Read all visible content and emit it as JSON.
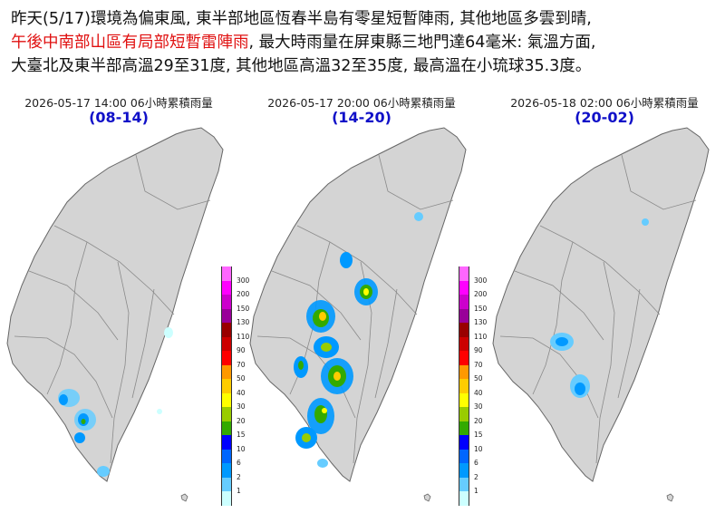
{
  "headline": {
    "line1": "昨天(5/17)環境為偏東風, 東半部地區恆春半島有零星短暫陣雨, 其他地區多雲到晴,",
    "line2_red": "午後中南部山區有局部短暫雷陣雨",
    "line2_rest": ", 最大時雨量在屏東縣三地門達64毫米: 氣溫方面,",
    "line3": "大臺北及東半部高溫29至31度, 其他地區高溫32至35度, 最高溫在小琉球35.3度。"
  },
  "panels": [
    {
      "title": "2026-05-17 14:00   06小時累積雨量",
      "range": "(08-14)"
    },
    {
      "title": "2026-05-17 20:00   06小時累積雨量",
      "range": "(14-20)"
    },
    {
      "title": "2026-05-18 02:00   06小時累積雨量",
      "range": "(20-02)"
    }
  ],
  "legend": {
    "ticks": [
      "300",
      "200",
      "150",
      "130",
      "110",
      "90",
      "70",
      "50",
      "40",
      "30",
      "20",
      "15",
      "10",
      "6",
      "2",
      "1"
    ],
    "colors": [
      "#ff66ff",
      "#ff00ff",
      "#cc00cc",
      "#990099",
      "#990000",
      "#cc0000",
      "#ff0000",
      "#ff9900",
      "#ffcc00",
      "#ffff00",
      "#99cc00",
      "#33aa00",
      "#0000ff",
      "#0066ff",
      "#0099ff",
      "#66ccff",
      "#ccffff"
    ]
  }
}
